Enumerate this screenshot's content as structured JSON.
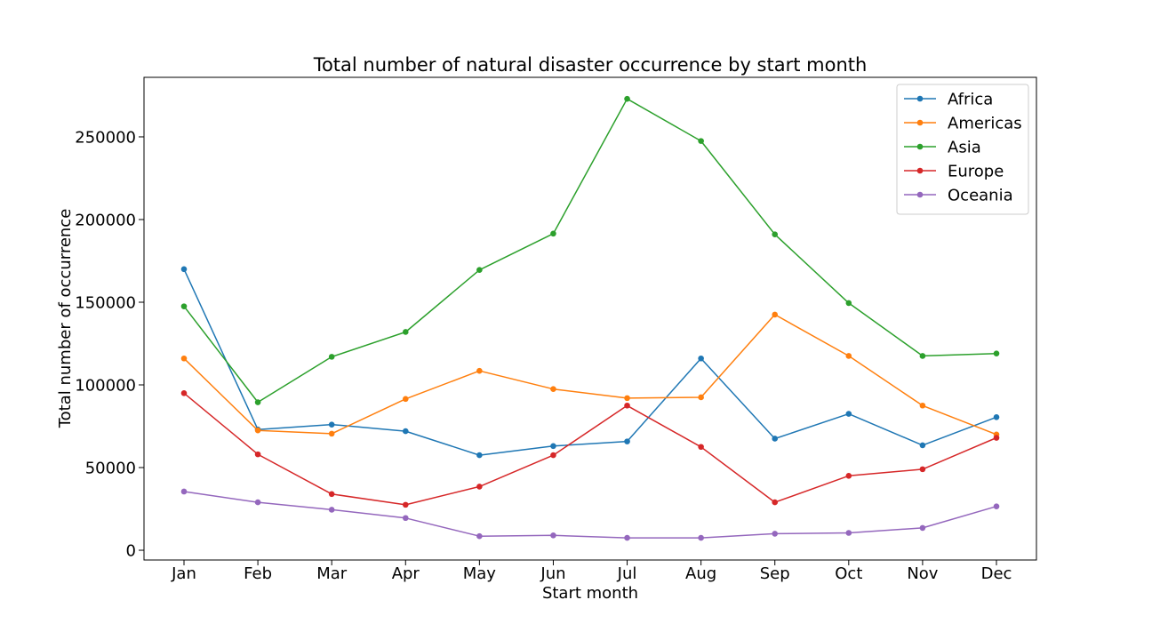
{
  "chart_data": {
    "type": "line",
    "title": "Total number of natural disaster occurrence by start month",
    "xlabel": "Start month",
    "ylabel": "Total number of occurrence",
    "categories": [
      "Jan",
      "Feb",
      "Mar",
      "Apr",
      "May",
      "Jun",
      "Jul",
      "Aug",
      "Sep",
      "Oct",
      "Nov",
      "Dec"
    ],
    "yticks": [
      0,
      50000,
      100000,
      150000,
      200000,
      250000
    ],
    "ylim": [
      -5900,
      286000
    ],
    "grid": false,
    "legend_position": "top-right",
    "series": [
      {
        "name": "Africa",
        "color": "#1f77b4",
        "values": [
          170000,
          73000,
          76000,
          72000,
          57500,
          63000,
          65800,
          116000,
          67500,
          82500,
          63500,
          80500
        ]
      },
      {
        "name": "Americas",
        "color": "#ff7f0e",
        "values": [
          116000,
          72500,
          70500,
          91500,
          108500,
          97500,
          92000,
          92500,
          142500,
          117500,
          87500,
          70000
        ]
      },
      {
        "name": "Asia",
        "color": "#2ca02c",
        "values": [
          147500,
          89500,
          117000,
          132000,
          169500,
          191500,
          273000,
          247500,
          191000,
          149500,
          117500,
          119000
        ]
      },
      {
        "name": "Europe",
        "color": "#d62728",
        "values": [
          95000,
          58000,
          34000,
          27500,
          38500,
          57500,
          87500,
          62500,
          29000,
          45000,
          49000,
          68000
        ]
      },
      {
        "name": "Oceania",
        "color": "#9467bd",
        "values": [
          35500,
          29000,
          24500,
          19500,
          8500,
          9000,
          7500,
          7500,
          10000,
          10500,
          13500,
          26500
        ]
      }
    ]
  }
}
